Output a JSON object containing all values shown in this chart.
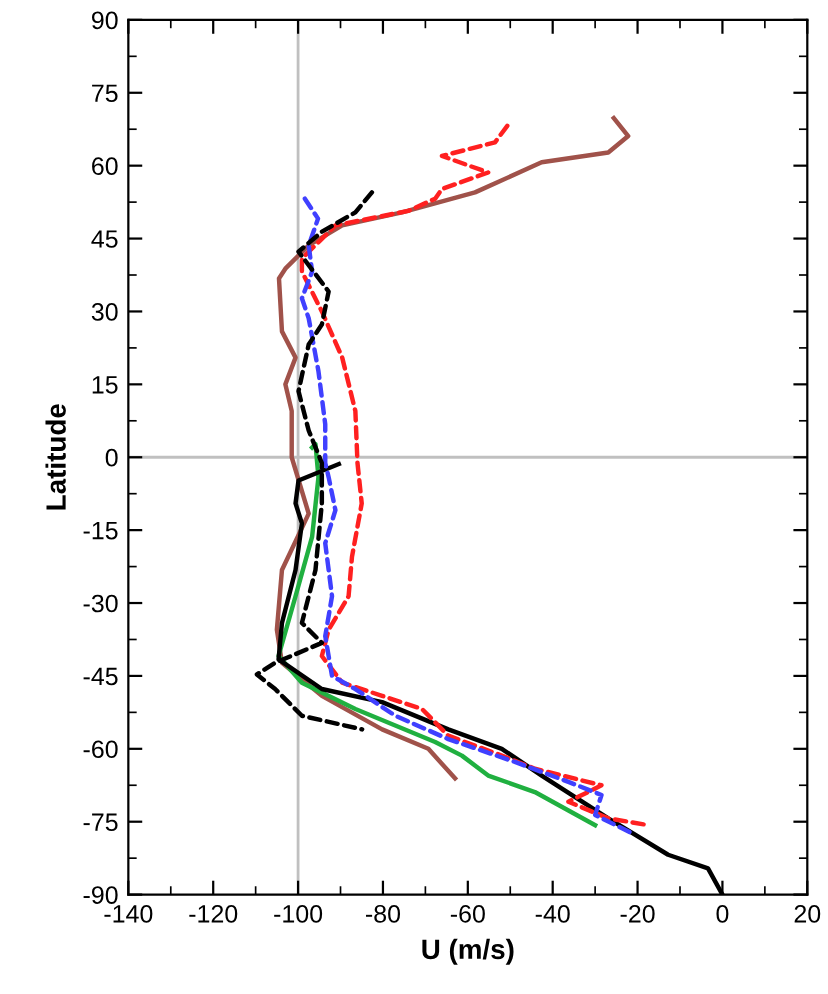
{
  "chart_data": {
    "type": "line",
    "xlabel": "U (m/s)",
    "ylabel": "Latitude",
    "xlim": [
      -140,
      20
    ],
    "xticks": [
      -140,
      -120,
      -100,
      -80,
      -60,
      -40,
      -20,
      0,
      20
    ],
    "ylim": [
      -90,
      90
    ],
    "yticks": [
      -90,
      -75,
      -60,
      -45,
      -30,
      -15,
      0,
      15,
      30,
      45,
      60,
      75,
      90
    ],
    "grid": false,
    "legend": false,
    "marker": "none",
    "ref_lines": [
      {
        "axis": "x",
        "value": -100,
        "color": "#c0c0c0"
      },
      {
        "axis": "y",
        "value": 0,
        "color": "#c0c0c0"
      }
    ],
    "series": [
      {
        "color": "#a0524a",
        "line_style": "solid",
        "x": [
          -25.6,
          -22.2,
          -26.9,
          -42.6,
          -58.3,
          -75.5,
          -89.6,
          -97.5,
          -103,
          -104.5,
          -103.8,
          -100.6,
          -103,
          -101.5,
          -101.5,
          -97.5,
          -103.8,
          -105,
          -103.8,
          -94.4,
          -80.2,
          -69.3,
          -63
        ],
        "values": [
          69.8,
          66.1,
          62.7,
          60.7,
          54.5,
          50.4,
          47.7,
          43.6,
          38.8,
          36.8,
          25.9,
          20.5,
          15.0,
          9.5,
          0,
          -11.6,
          -23.2,
          -35.5,
          -42.3,
          -49.1,
          -56,
          -60,
          -66.1
        ]
      },
      {
        "color": "#ff2020",
        "line_style": "dashed",
        "x": [
          -50.7,
          -53.6,
          -66.1,
          -55.2,
          -66.1,
          -67.7,
          -74,
          -91.2,
          -99.1,
          -99.1,
          -94.4,
          -89.6,
          -86.5,
          -86,
          -85,
          -87.3,
          -88.1,
          -92.8,
          -94.4,
          -89.6,
          -80.2,
          -70.8,
          -64.6,
          -52,
          -44.2,
          -28.5,
          -36.3,
          -26.9,
          -17.5
        ],
        "values": [
          68.2,
          64.8,
          62,
          58.6,
          55.2,
          53.2,
          50.7,
          47.7,
          40.9,
          38.2,
          30,
          20.5,
          9.5,
          -1.2,
          -9.5,
          -20.5,
          -28.6,
          -35.5,
          -40.9,
          -46.4,
          -49.1,
          -51.8,
          -57.3,
          -61.4,
          -64.1,
          -67.5,
          -70.9,
          -74.3,
          -75.7
        ]
      },
      {
        "color": "#4040ff",
        "line_style": "dashed",
        "x": [
          -98.4,
          -95.3,
          -97.5,
          -96.7,
          -99.1,
          -97.5,
          -95.2,
          -93.6,
          -93.6,
          -92.8,
          -91.2,
          -93.6,
          -92,
          -93.6,
          -92,
          -86.5,
          -77.1,
          -64.6,
          -48.9,
          -36.3,
          -28.5,
          -30,
          -20.6
        ],
        "values": [
          53.2,
          49.1,
          43.6,
          38.2,
          32.7,
          28.6,
          17.7,
          6.8,
          -1.2,
          -4.1,
          -10.9,
          -17.7,
          -28.6,
          -36.8,
          -45,
          -47.7,
          -53.2,
          -58,
          -62.7,
          -66.8,
          -69.5,
          -73.6,
          -77.7
        ]
      },
      {
        "color": "#000000",
        "line_style": "dashed",
        "x": [
          -82.6,
          -86.5,
          -94.4,
          -99.9,
          -92.8,
          -94.4,
          -97.5,
          -99.9,
          -97.5,
          -94.4,
          -94.4,
          -95.9,
          -99.1,
          -94.4,
          -105.4,
          -109.7,
          -105.4,
          -99.1,
          -84.9
        ],
        "values": [
          54.5,
          50.4,
          46.4,
          42.3,
          34.1,
          27.3,
          23.2,
          13.6,
          5.5,
          -1.2,
          -9.5,
          -23.2,
          -34.1,
          -38.2,
          -42.3,
          -44.7,
          -47.7,
          -53.2,
          -56
        ]
      },
      {
        "color": "#20b040",
        "line_style": "solid",
        "x": [
          -96.7,
          -95.9,
          -95.2,
          -96.7,
          -100.6,
          -104.6,
          -99.1,
          -86.5,
          -67.7,
          -61.4,
          -55.2,
          -44.2,
          -30
        ],
        "values": [
          2,
          2.7,
          -4.1,
          -16.4,
          -28.6,
          -40.9,
          -46.4,
          -51.8,
          -58.6,
          -61.4,
          -65.5,
          -68.9,
          -75.7
        ]
      },
      {
        "color": "#000000",
        "line_style": "solid",
        "x": [
          -90.4,
          -99.9,
          -100.6,
          -99.1,
          -100.6,
          -103.8,
          -104.6,
          -94.4,
          -80.2,
          -64.6,
          -52,
          -42.6,
          -26.9,
          -12.8,
          -3.4,
          0
        ],
        "values": [
          -1.4,
          -4.8,
          -9.5,
          -13.6,
          -23.2,
          -34.1,
          -41.6,
          -47.7,
          -50.4,
          -56,
          -60,
          -65.5,
          -74.3,
          -81.8,
          -84.6,
          -90
        ]
      }
    ]
  }
}
